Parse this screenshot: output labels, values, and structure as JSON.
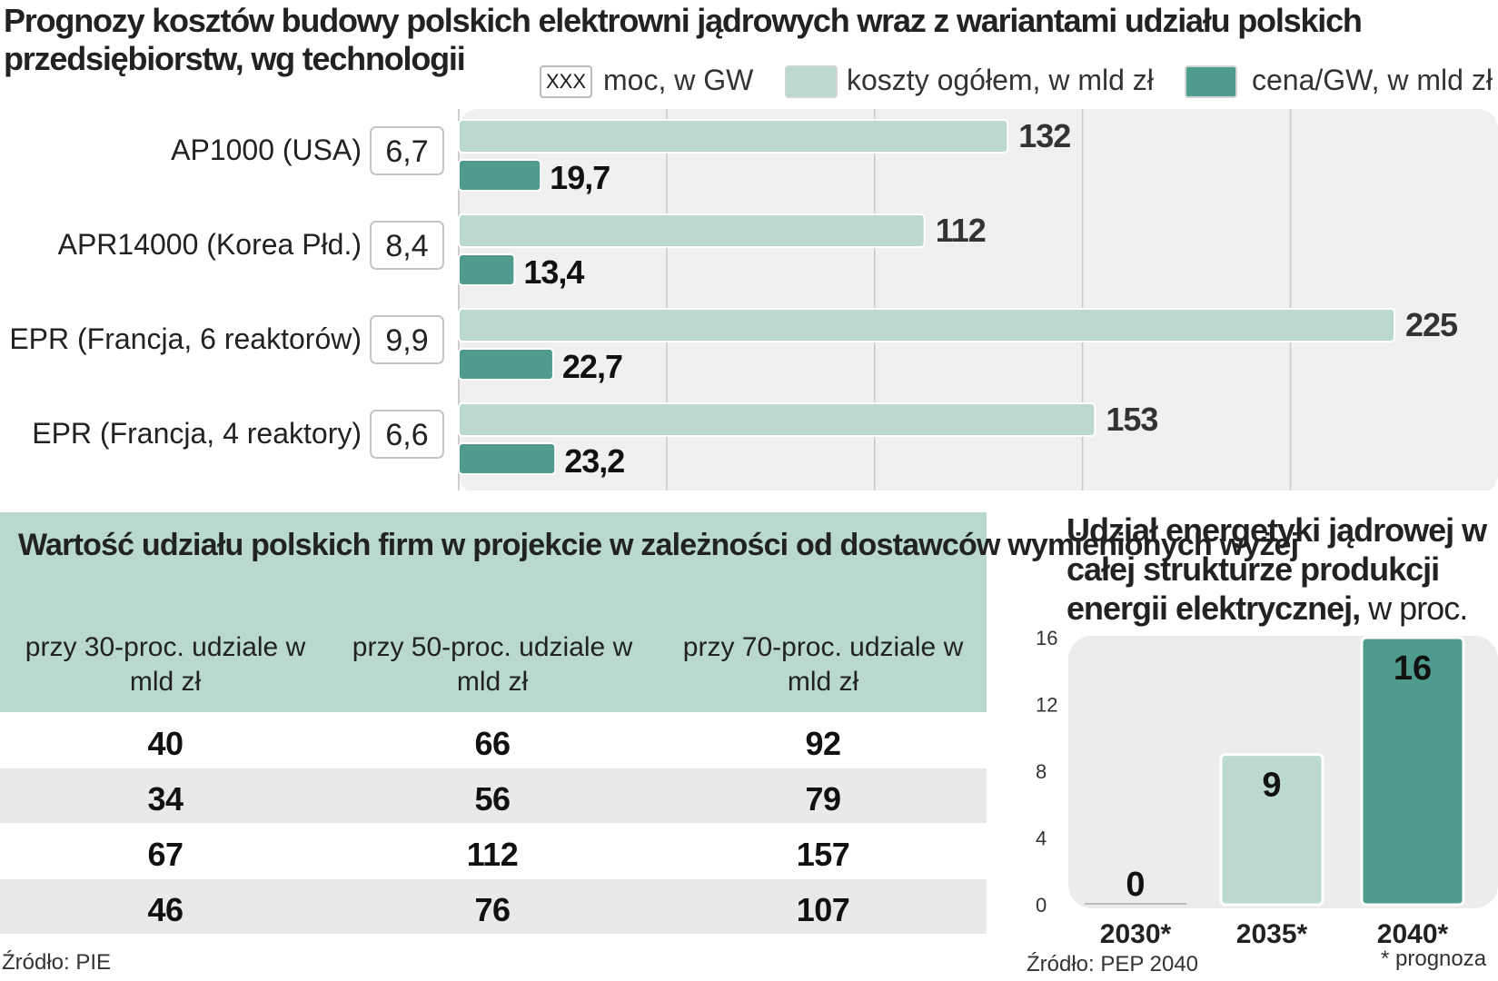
{
  "title": "Prognozy kosztów budowy polskich elektrowni jądrowych wraz z wariantami udziału polskich przedsiębiorstw, wg technologii",
  "legend": {
    "box_sample": "XXX",
    "capacity_label": "moc, w GW",
    "total_label": "koszty ogółem, w mld zł",
    "price_label": "cena/GW, w mld zł"
  },
  "colors": {
    "light": "#bcd9d0",
    "dark": "#4f9b8e",
    "bg_panel": "#efefef",
    "table_header": "#b9d8cf",
    "table_stripe": "#e9e9e9"
  },
  "chart_data": [
    {
      "type": "bar",
      "orientation": "horizontal",
      "categories": [
        "AP1000 (USA)",
        "APR14000 (Korea Płd.)",
        "EPR (Francja, 6 reaktorów)",
        "EPR (Francja, 4 reaktory)"
      ],
      "capacity": [
        "6,7",
        "8,4",
        "9,9",
        "6,6"
      ],
      "series": [
        {
          "name": "koszty ogółem, w mld zł",
          "values": [
            132,
            112,
            225,
            153
          ],
          "labels": [
            "132",
            "112",
            "225",
            "153"
          ]
        },
        {
          "name": "cena/GW, w mld zł",
          "values": [
            19.7,
            13.4,
            22.7,
            23.2
          ],
          "labels": [
            "19,7",
            "13,4",
            "22,7",
            "23,2"
          ]
        }
      ],
      "xlim": [
        0,
        250
      ],
      "grid": true
    },
    {
      "type": "bar",
      "title": "Udział energetyki jądrowej w całej strukturze produkcji energii elektrycznej, w proc.",
      "categories": [
        "2030*",
        "2035*",
        "2040*"
      ],
      "values": [
        0,
        9,
        16
      ],
      "ylim": [
        0,
        16
      ],
      "yticks": [
        "0",
        "4",
        "8",
        "12",
        "16"
      ],
      "grid": false
    }
  ],
  "panel2": {
    "title_bold": "Udział energetyki jądrowej w całej strukturze produkcji energii elektrycznej,",
    "title_light": " w proc."
  },
  "table": {
    "title": "Wartość udziału polskich firm w projekcie w zależności od dostawców wymienionych wyżej",
    "headers": [
      "przy 30-proc. udziale w mld zł",
      "przy 50-proc. udziale w mld zł",
      "przy 70-proc. udziale w mld zł"
    ],
    "rows": [
      [
        "40",
        "66",
        "92"
      ],
      [
        "34",
        "56",
        "79"
      ],
      [
        "67",
        "112",
        "157"
      ],
      [
        "46",
        "76",
        "107"
      ]
    ]
  },
  "source_left": "Źródło: PIE",
  "source_right": "Źródło: PEP 2040",
  "footnote": "* prognoza"
}
